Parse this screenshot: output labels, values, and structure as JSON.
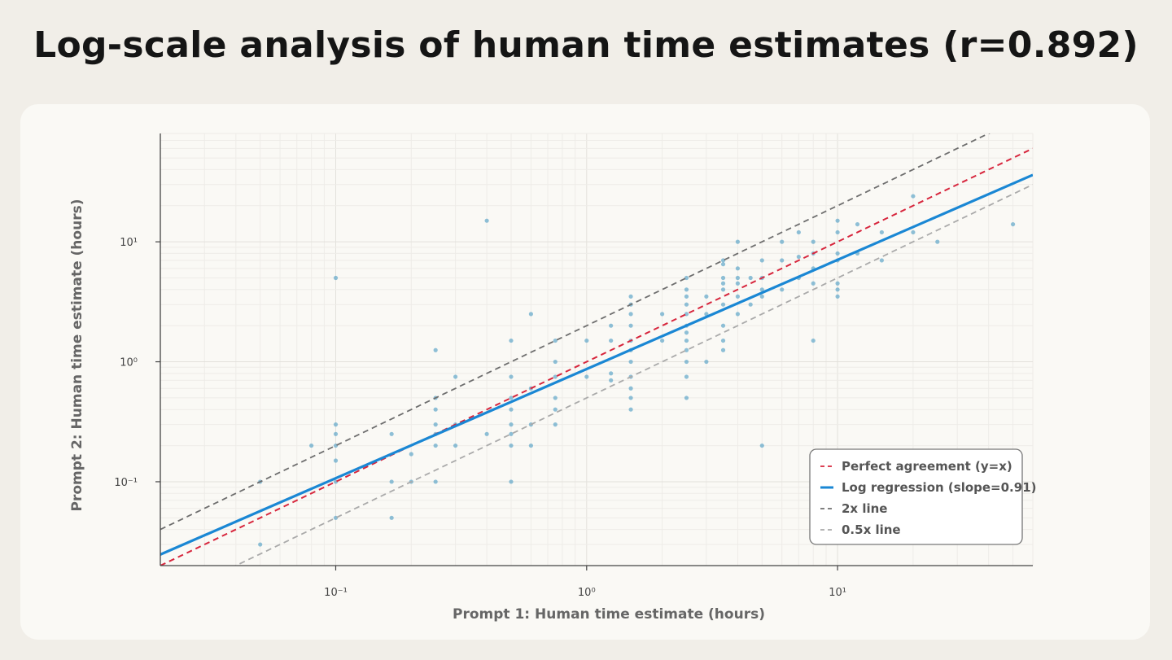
{
  "title": "Log-scale analysis of human time estimates (r=0.892)",
  "chart_data": {
    "type": "scatter",
    "xlabel": "Prompt 1: Human time estimate (hours)",
    "ylabel": "Prompt 2: Human time estimate (hours)",
    "x_scale": "log",
    "y_scale": "log",
    "xlim": [
      0.02,
      60
    ],
    "ylim": [
      0.02,
      80
    ],
    "x_ticks": [
      {
        "value": 0.1,
        "label": "10⁻¹"
      },
      {
        "value": 1,
        "label": "10⁰"
      },
      {
        "value": 10,
        "label": "10¹"
      }
    ],
    "y_ticks": [
      {
        "value": 0.1,
        "label": "10⁻¹"
      },
      {
        "value": 1,
        "label": "10⁰"
      },
      {
        "value": 10,
        "label": "10¹"
      }
    ],
    "grid": true,
    "legend_position": "bottom-right",
    "colors": {
      "points": "#5fa7c9",
      "regression": "#1a87d4",
      "perfect": "#d7263d",
      "line2x": "#6e6e6e",
      "line05x": "#aaaaaa"
    },
    "lines": [
      {
        "name": "Perfect agreement (y=x)",
        "slope": 1,
        "factor": 1,
        "style": "dashed",
        "color_key": "perfect"
      },
      {
        "name": "Log regression (slope=0.91)",
        "slope": 0.91,
        "factor": 0.87,
        "style": "solid",
        "color_key": "regression"
      },
      {
        "name": "2x line",
        "slope": 1,
        "factor": 2,
        "style": "dashed",
        "color_key": "line2x"
      },
      {
        "name": "0.5x line",
        "slope": 1,
        "factor": 0.5,
        "style": "dashed",
        "color_key": "line05x"
      }
    ],
    "points": [
      [
        0.05,
        0.1
      ],
      [
        0.05,
        0.03
      ],
      [
        0.08,
        0.2
      ],
      [
        0.1,
        5.0
      ],
      [
        0.1,
        0.3
      ],
      [
        0.1,
        0.25
      ],
      [
        0.1,
        0.2
      ],
      [
        0.1,
        0.15
      ],
      [
        0.1,
        0.1
      ],
      [
        0.1,
        0.05
      ],
      [
        0.167,
        0.25
      ],
      [
        0.167,
        0.1
      ],
      [
        0.167,
        0.05
      ],
      [
        0.2,
        0.17
      ],
      [
        0.2,
        0.1
      ],
      [
        0.25,
        1.25
      ],
      [
        0.25,
        0.5
      ],
      [
        0.25,
        0.4
      ],
      [
        0.25,
        0.3
      ],
      [
        0.25,
        0.25
      ],
      [
        0.25,
        0.2
      ],
      [
        0.25,
        0.1
      ],
      [
        0.3,
        0.75
      ],
      [
        0.3,
        0.3
      ],
      [
        0.3,
        0.2
      ],
      [
        0.4,
        15.0
      ],
      [
        0.4,
        0.25
      ],
      [
        0.5,
        1.5
      ],
      [
        0.5,
        0.75
      ],
      [
        0.5,
        0.5
      ],
      [
        0.5,
        0.4
      ],
      [
        0.5,
        0.3
      ],
      [
        0.5,
        0.25
      ],
      [
        0.5,
        0.2
      ],
      [
        0.5,
        0.1
      ],
      [
        0.6,
        2.5
      ],
      [
        0.6,
        0.6
      ],
      [
        0.6,
        0.3
      ],
      [
        0.6,
        0.2
      ],
      [
        0.75,
        1.5
      ],
      [
        0.75,
        1.0
      ],
      [
        0.75,
        0.75
      ],
      [
        0.75,
        0.5
      ],
      [
        0.75,
        0.4
      ],
      [
        0.75,
        0.3
      ],
      [
        1.0,
        1.5
      ],
      [
        1.0,
        0.75
      ],
      [
        1.25,
        2.0
      ],
      [
        1.25,
        1.5
      ],
      [
        1.25,
        0.8
      ],
      [
        1.25,
        0.7
      ],
      [
        1.5,
        3.5
      ],
      [
        1.5,
        3.0
      ],
      [
        1.5,
        2.5
      ],
      [
        1.5,
        2.0
      ],
      [
        1.5,
        1.5
      ],
      [
        1.5,
        1.25
      ],
      [
        1.5,
        1.0
      ],
      [
        1.5,
        0.75
      ],
      [
        1.5,
        0.6
      ],
      [
        1.5,
        0.5
      ],
      [
        1.5,
        0.4
      ],
      [
        2.0,
        2.5
      ],
      [
        2.0,
        1.5
      ],
      [
        2.5,
        5.0
      ],
      [
        2.5,
        4.0
      ],
      [
        2.5,
        3.5
      ],
      [
        2.5,
        3.0
      ],
      [
        2.5,
        2.5
      ],
      [
        2.5,
        2.0
      ],
      [
        2.5,
        1.75
      ],
      [
        2.5,
        1.5
      ],
      [
        2.5,
        1.25
      ],
      [
        2.5,
        1.0
      ],
      [
        2.5,
        0.75
      ],
      [
        2.5,
        0.5
      ],
      [
        3.0,
        3.5
      ],
      [
        3.0,
        2.5
      ],
      [
        3.0,
        1.0
      ],
      [
        3.5,
        7.0
      ],
      [
        3.5,
        6.5
      ],
      [
        3.5,
        5.0
      ],
      [
        3.5,
        4.5
      ],
      [
        3.5,
        4.0
      ],
      [
        3.5,
        3.0
      ],
      [
        3.5,
        2.0
      ],
      [
        3.5,
        1.5
      ],
      [
        3.5,
        1.25
      ],
      [
        4.0,
        10.0
      ],
      [
        4.0,
        6.0
      ],
      [
        4.0,
        5.0
      ],
      [
        4.0,
        4.5
      ],
      [
        4.0,
        3.5
      ],
      [
        4.0,
        2.5
      ],
      [
        4.5,
        5.0
      ],
      [
        4.5,
        3.0
      ],
      [
        5.0,
        7.0
      ],
      [
        5.0,
        5.0
      ],
      [
        5.0,
        4.0
      ],
      [
        5.0,
        3.5
      ],
      [
        5.0,
        0.2
      ],
      [
        6.0,
        10.0
      ],
      [
        6.0,
        7.0
      ],
      [
        6.0,
        4.0
      ],
      [
        7.0,
        12.0
      ],
      [
        7.0,
        7.5
      ],
      [
        7.0,
        5.0
      ],
      [
        8.0,
        10.0
      ],
      [
        8.0,
        8.0
      ],
      [
        8.0,
        6.0
      ],
      [
        8.0,
        4.5
      ],
      [
        8.0,
        1.5
      ],
      [
        10.0,
        15.0
      ],
      [
        10.0,
        12.0
      ],
      [
        10.0,
        8.0
      ],
      [
        10.0,
        7.0
      ],
      [
        10.0,
        4.5
      ],
      [
        10.0,
        4.0
      ],
      [
        10.0,
        3.5
      ],
      [
        12.0,
        14.0
      ],
      [
        12.0,
        8.0
      ],
      [
        15.0,
        12.0
      ],
      [
        15.0,
        7.0
      ],
      [
        20.0,
        24.0
      ],
      [
        20.0,
        12.0
      ],
      [
        25.0,
        10.0
      ],
      [
        50.0,
        14.0
      ]
    ]
  }
}
